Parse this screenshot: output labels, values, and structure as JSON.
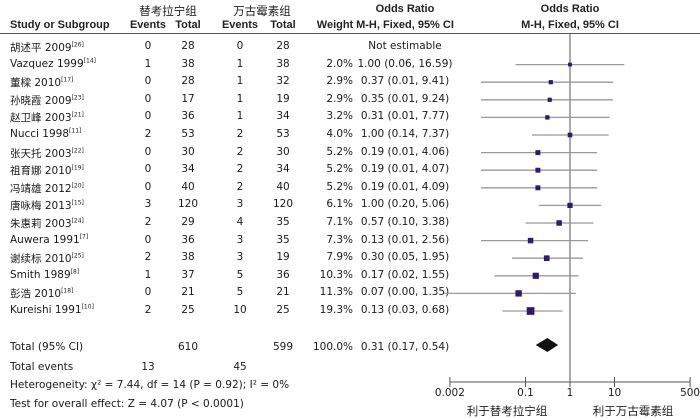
{
  "headers": {
    "group1": "替考拉宁组",
    "group2": "万古霉素组",
    "study": "Study or Subgroup",
    "events1": "Events",
    "total1": "Total",
    "events2": "Events",
    "total2": "Total",
    "weight": "Weight",
    "or_title": "Odds Ratio",
    "or_method": "M-H, Fixed, 95% CI",
    "plot_title": "Odds Ratio",
    "plot_method": "M-H, Fixed, 95% CI"
  },
  "rows": [
    {
      "study": "胡述平 2009",
      "ref": "[26]",
      "e1": "0",
      "t1": "28",
      "e2": "0",
      "t2": "28",
      "weight": "",
      "or_text": "Not estimable"
    },
    {
      "study": "Vazquez 1999",
      "ref": "[14]",
      "e1": "1",
      "t1": "38",
      "e2": "1",
      "t2": "38",
      "weight": "2.0%",
      "or_text": "1.00 (0.06, 16.59)"
    },
    {
      "study": "董樑 2010",
      "ref": "[17]",
      "e1": "0",
      "t1": "28",
      "e2": "1",
      "t2": "32",
      "weight": "2.9%",
      "or_text": "0.37 (0.01, 9.41)"
    },
    {
      "study": "孙晓霞 2009",
      "ref": "[23]",
      "e1": "0",
      "t1": "17",
      "e2": "1",
      "t2": "19",
      "weight": "2.9%",
      "or_text": "0.35 (0.01, 9.24)"
    },
    {
      "study": "赵卫峰 2003",
      "ref": "[21]",
      "e1": "0",
      "t1": "36",
      "e2": "1",
      "t2": "34",
      "weight": "3.2%",
      "or_text": "0.31 (0.01, 7.77)"
    },
    {
      "study": "Nucci 1998",
      "ref": "[11]",
      "e1": "2",
      "t1": "53",
      "e2": "2",
      "t2": "53",
      "weight": "4.0%",
      "or_text": "1.00 (0.14, 7.37)"
    },
    {
      "study": "张天托 2003",
      "ref": "[22]",
      "e1": "0",
      "t1": "30",
      "e2": "2",
      "t2": "30",
      "weight": "5.2%",
      "or_text": "0.19 (0.01, 4.06)"
    },
    {
      "study": "祖育娜 2010",
      "ref": "[19]",
      "e1": "0",
      "t1": "34",
      "e2": "2",
      "t2": "34",
      "weight": "5.2%",
      "or_text": "0.19 (0.01, 4.07)"
    },
    {
      "study": "冯靖雄 2012",
      "ref": "[20]",
      "e1": "0",
      "t1": "40",
      "e2": "2",
      "t2": "40",
      "weight": "5.2%",
      "or_text": "0.19 (0.01, 4.09)"
    },
    {
      "study": "唐咏梅 2013",
      "ref": "[15]",
      "e1": "3",
      "t1": "120",
      "e2": "3",
      "t2": "120",
      "weight": "6.1%",
      "or_text": "1.00 (0.20, 5.06)"
    },
    {
      "study": "朱惠莉 2003",
      "ref": "[24]",
      "e1": "2",
      "t1": "29",
      "e2": "4",
      "t2": "35",
      "weight": "7.1%",
      "or_text": "0.57 (0.10, 3.38)"
    },
    {
      "study": "Auwera 1991",
      "ref": "[7]",
      "e1": "0",
      "t1": "36",
      "e2": "3",
      "t2": "35",
      "weight": "7.3%",
      "or_text": "0.13 (0.01, 2.56)"
    },
    {
      "study": "谢续标 2010",
      "ref": "[25]",
      "e1": "2",
      "t1": "38",
      "e2": "3",
      "t2": "19",
      "weight": "7.9%",
      "or_text": "0.30 (0.05, 1.95)"
    },
    {
      "study": "Smith 1989",
      "ref": "[8]",
      "e1": "1",
      "t1": "37",
      "e2": "5",
      "t2": "36",
      "weight": "10.3%",
      "or_text": "0.17 (0.02, 1.55)"
    },
    {
      "study": "彭浩 2010",
      "ref": "[18]",
      "e1": "0",
      "t1": "21",
      "e2": "5",
      "t2": "21",
      "weight": "11.3%",
      "or_text": "0.07 (0.00, 1.35)"
    },
    {
      "study": "Kureishi 1991",
      "ref": "[10]",
      "e1": "2",
      "t1": "25",
      "e2": "10",
      "t2": "25",
      "weight": "19.3%",
      "or_text": "0.13 (0.03, 0.68)"
    }
  ],
  "total": {
    "label": "Total (95% CI)",
    "t1": "610",
    "t2": "599",
    "weight": "100.0%",
    "or_text": "0.31 (0.17, 0.54)"
  },
  "total_events": {
    "label": "Total events",
    "e1": "13",
    "e2": "45"
  },
  "heterogeneity": "Heterogeneity: χ² = 7.44, df = 14 (P = 0.92); I² = 0%",
  "overall_effect": "Test for overall effect: Z = 4.07 (P < 0.0001)",
  "colors": {
    "square": "#2e1a6e",
    "ci_line": "#999999",
    "diamond": "#111111",
    "axis": "#555555"
  },
  "chart_data": {
    "type": "forest",
    "title": "Odds Ratio M-H, Fixed, 95% CI",
    "scale": "log",
    "xlim": [
      0.002,
      500
    ],
    "x_ticks": [
      "0.002",
      "0.1",
      "1",
      "10",
      "500"
    ],
    "x_tick_values": [
      0.002,
      0.1,
      1,
      10,
      500
    ],
    "left_label": "利于替考拉宁组",
    "right_label": "利于万古霉素组",
    "reference_line": 1,
    "points": [
      {
        "study": "胡述平 2009",
        "or": null,
        "lo": null,
        "hi": null,
        "weight": 0
      },
      {
        "study": "Vazquez 1999",
        "or": 1.0,
        "lo": 0.06,
        "hi": 16.59,
        "weight": 2.0
      },
      {
        "study": "董樑 2010",
        "or": 0.37,
        "lo": 0.01,
        "hi": 9.41,
        "weight": 2.9
      },
      {
        "study": "孙晓霞 2009",
        "or": 0.35,
        "lo": 0.01,
        "hi": 9.24,
        "weight": 2.9
      },
      {
        "study": "赵卫峰 2003",
        "or": 0.31,
        "lo": 0.01,
        "hi": 7.77,
        "weight": 3.2
      },
      {
        "study": "Nucci 1998",
        "or": 1.0,
        "lo": 0.14,
        "hi": 7.37,
        "weight": 4.0
      },
      {
        "study": "张天托 2003",
        "or": 0.19,
        "lo": 0.01,
        "hi": 4.06,
        "weight": 5.2
      },
      {
        "study": "祖育娜 2010",
        "or": 0.19,
        "lo": 0.01,
        "hi": 4.07,
        "weight": 5.2
      },
      {
        "study": "冯靖雄 2012",
        "or": 0.19,
        "lo": 0.01,
        "hi": 4.09,
        "weight": 5.2
      },
      {
        "study": "唐咏梅 2013",
        "or": 1.0,
        "lo": 0.2,
        "hi": 5.06,
        "weight": 6.1
      },
      {
        "study": "朱惠莉 2003",
        "or": 0.57,
        "lo": 0.1,
        "hi": 3.38,
        "weight": 7.1
      },
      {
        "study": "Auwera 1991",
        "or": 0.13,
        "lo": 0.01,
        "hi": 2.56,
        "weight": 7.3
      },
      {
        "study": "谢续标 2010",
        "or": 0.3,
        "lo": 0.05,
        "hi": 1.95,
        "weight": 7.9
      },
      {
        "study": "Smith 1989",
        "or": 0.17,
        "lo": 0.02,
        "hi": 1.55,
        "weight": 10.3
      },
      {
        "study": "彭浩 2010",
        "or": 0.07,
        "lo": 0.0,
        "hi": 1.35,
        "weight": 11.3
      },
      {
        "study": "Kureishi 1991",
        "or": 0.13,
        "lo": 0.03,
        "hi": 0.68,
        "weight": 19.3
      }
    ],
    "summary": {
      "or": 0.31,
      "lo": 0.17,
      "hi": 0.54
    }
  }
}
